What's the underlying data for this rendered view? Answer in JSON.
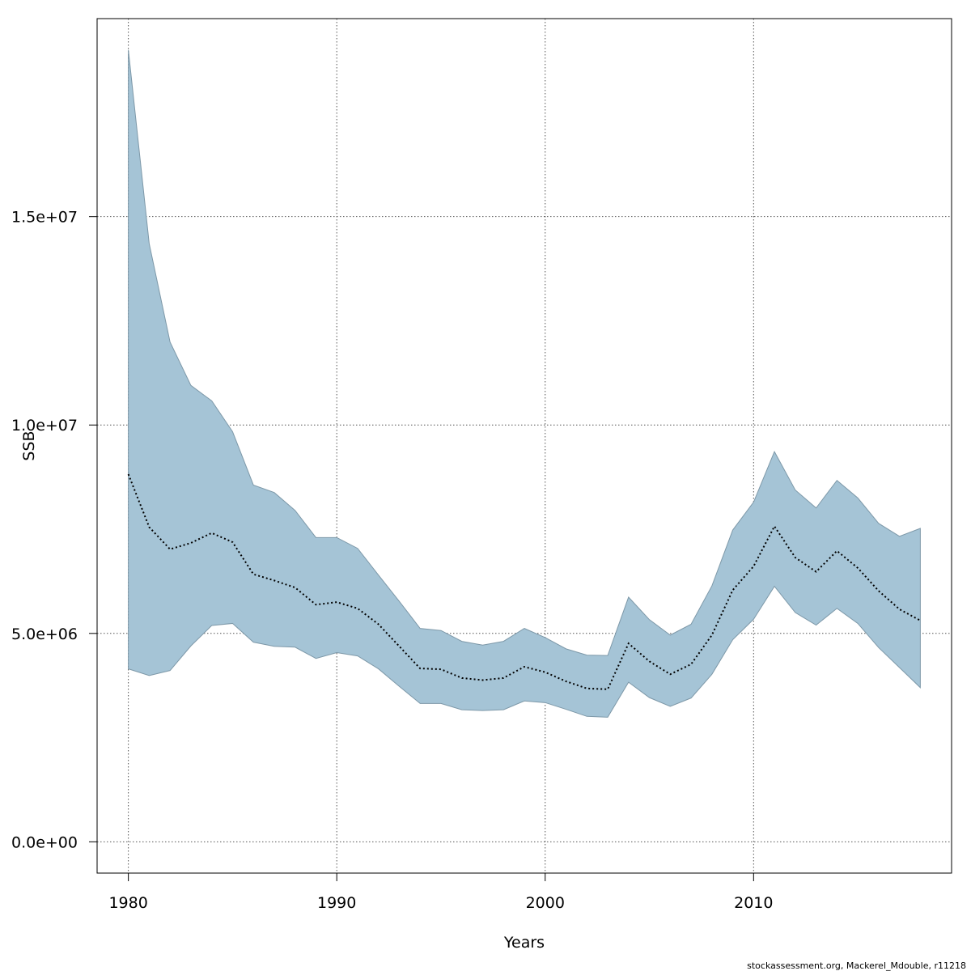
{
  "chart_data": {
    "type": "area",
    "xlabel": "Years",
    "ylabel": "SSB",
    "xlim": [
      1978.5,
      2019.5
    ],
    "ylim": [
      -750000,
      19750000
    ],
    "x_ticks": [
      1980,
      1990,
      2000,
      2010
    ],
    "x_tick_labels": [
      "1980",
      "1990",
      "2000",
      "2010"
    ],
    "y_ticks": [
      0,
      5000000,
      10000000,
      15000000
    ],
    "y_tick_labels": [
      "0.0e+00",
      "5.0e+06",
      "1.0e+07",
      "1.5e+07"
    ],
    "grid": true,
    "band_color": "#a5c4d6",
    "band_edge_color": "#7d98a8",
    "line_color": "#000000",
    "x": [
      1980,
      1981,
      1982,
      1983,
      1984,
      1985,
      1986,
      1987,
      1988,
      1989,
      1990,
      1991,
      1992,
      1993,
      1994,
      1995,
      1996,
      1997,
      1998,
      1999,
      2000,
      2001,
      2002,
      2003,
      2004,
      2005,
      2006,
      2007,
      2008,
      2009,
      2010,
      2011,
      2012,
      2013,
      2014,
      2015,
      2016,
      2017,
      2018
    ],
    "series": [
      {
        "name": "",
        "role": "upper",
        "values": [
          19000000,
          14350000,
          11990000,
          10950000,
          10580000,
          9840000,
          8560000,
          8380000,
          7950000,
          7300000,
          7300000,
          7040000,
          6400000,
          5770000,
          5120000,
          5070000,
          4810000,
          4720000,
          4810000,
          5120000,
          4900000,
          4630000,
          4480000,
          4470000,
          5870000,
          5330000,
          4960000,
          5220000,
          6140000,
          7480000,
          8150000,
          9360000,
          8440000,
          8010000,
          8670000,
          8250000,
          7640000,
          7330000,
          7520000
        ]
      },
      {
        "name": "",
        "role": "median",
        "values": [
          8820000,
          7550000,
          7020000,
          7170000,
          7410000,
          7190000,
          6420000,
          6270000,
          6100000,
          5690000,
          5750000,
          5600000,
          5220000,
          4690000,
          4160000,
          4140000,
          3930000,
          3880000,
          3930000,
          4200000,
          4070000,
          3850000,
          3680000,
          3660000,
          4760000,
          4330000,
          4020000,
          4260000,
          4960000,
          6040000,
          6610000,
          7570000,
          6820000,
          6480000,
          6980000,
          6570000,
          6020000,
          5580000,
          5310000
        ]
      },
      {
        "name": "",
        "role": "lower",
        "values": [
          4150000,
          3990000,
          4110000,
          4700000,
          5190000,
          5240000,
          4790000,
          4690000,
          4670000,
          4400000,
          4540000,
          4460000,
          4150000,
          3730000,
          3320000,
          3320000,
          3170000,
          3150000,
          3170000,
          3380000,
          3340000,
          3180000,
          3010000,
          2990000,
          3830000,
          3460000,
          3250000,
          3450000,
          4020000,
          4850000,
          5340000,
          6130000,
          5500000,
          5200000,
          5600000,
          5240000,
          4660000,
          4180000,
          3700000
        ]
      }
    ],
    "footer_text": "stockassessment.org, Mackerel_Mdouble, r11218"
  }
}
